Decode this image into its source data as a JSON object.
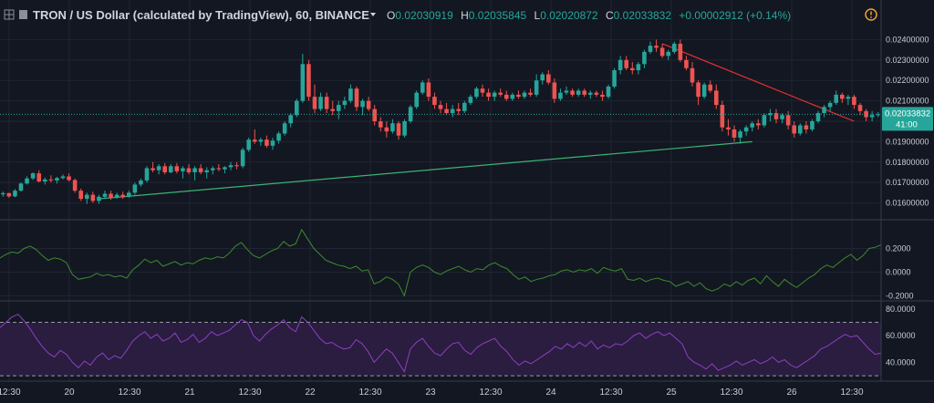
{
  "header": {
    "title": "TRON / US Dollar (calculated by TradingView), 60, BINANCE",
    "o_label": "O",
    "o_value": "0.02030919",
    "h_label": "H",
    "h_value": "0.02035845",
    "l_label": "L",
    "l_value": "0.02020872",
    "c_label": "C",
    "c_value": "0.02033832",
    "change": "+0.00002912 (+0.14%)"
  },
  "colors": {
    "background": "#131722",
    "up": "#26a69a",
    "down": "#ef5350",
    "grid": "#1f2533",
    "text": "#c8ccd5",
    "oscillator": "#3d8b2e",
    "rsi": "#8e3fbf",
    "rsi_band": "#2a1d40",
    "support": "#3cb371",
    "resistance": "#e03030"
  },
  "icons": {
    "toolbar": "grid-icon",
    "series": "candle-icon",
    "warning": "warning-icon",
    "dropdown": "chevron-down-icon"
  },
  "price_badge": {
    "value": "0.02033832",
    "countdown": "41:00"
  },
  "chart_data": [
    {
      "type": "candlestick",
      "title": "TRON / US Dollar (calculated by TradingView), 60, BINANCE",
      "x_ticks": [
        "12:30",
        "20",
        "12:30",
        "21",
        "12:30",
        "22",
        "12:30",
        "23",
        "12:30",
        "24",
        "12:30",
        "25",
        "12:30",
        "26",
        "12:30"
      ],
      "y_ticks": [
        "0.01600000",
        "0.01700000",
        "0.01800000",
        "0.01900000",
        "0.02000000",
        "0.02100000",
        "0.02200000",
        "0.02300000",
        "0.02400000"
      ],
      "ylim": [
        0.0154,
        0.0246
      ],
      "candles": [
        [
          0.01642,
          0.01655,
          0.0163,
          0.01648
        ],
        [
          0.01648,
          0.0165,
          0.01625,
          0.01632
        ],
        [
          0.01632,
          0.01668,
          0.01628,
          0.0166
        ],
        [
          0.0166,
          0.017,
          0.01655,
          0.01695
        ],
        [
          0.01695,
          0.0173,
          0.0169,
          0.0172
        ],
        [
          0.0172,
          0.0175,
          0.01712,
          0.01745
        ],
        [
          0.01745,
          0.0176,
          0.017,
          0.01705
        ],
        [
          0.01705,
          0.01725,
          0.0169,
          0.01715
        ],
        [
          0.01715,
          0.01735,
          0.017,
          0.0171
        ],
        [
          0.0171,
          0.01728,
          0.01695,
          0.01722
        ],
        [
          0.01722,
          0.0174,
          0.01715,
          0.0173
        ],
        [
          0.0173,
          0.01745,
          0.01705,
          0.01712
        ],
        [
          0.01712,
          0.0172,
          0.0165,
          0.0166
        ],
        [
          0.0166,
          0.0167,
          0.0161,
          0.0162
        ],
        [
          0.0162,
          0.0165,
          0.01595,
          0.0164
        ],
        [
          0.0164,
          0.01655,
          0.016,
          0.0161
        ],
        [
          0.0161,
          0.0164,
          0.01595,
          0.0163
        ],
        [
          0.0163,
          0.0166,
          0.0162,
          0.01645
        ],
        [
          0.01645,
          0.0166,
          0.01615,
          0.01625
        ],
        [
          0.01625,
          0.0165,
          0.0162,
          0.0164
        ],
        [
          0.0164,
          0.01655,
          0.0162,
          0.0163
        ],
        [
          0.0163,
          0.0166,
          0.01625,
          0.0165
        ],
        [
          0.0165,
          0.017,
          0.0164,
          0.0169
        ],
        [
          0.0169,
          0.0172,
          0.0168,
          0.0171
        ],
        [
          0.0171,
          0.0178,
          0.017,
          0.0177
        ],
        [
          0.0177,
          0.018,
          0.0175,
          0.0176
        ],
        [
          0.0176,
          0.0179,
          0.0174,
          0.0178
        ],
        [
          0.0178,
          0.01795,
          0.0174,
          0.0175
        ],
        [
          0.0175,
          0.0179,
          0.01745,
          0.0178
        ],
        [
          0.0178,
          0.01795,
          0.01745,
          0.01755
        ],
        [
          0.01755,
          0.0178,
          0.0172,
          0.0177
        ],
        [
          0.0177,
          0.0179,
          0.0174,
          0.0175
        ],
        [
          0.0175,
          0.0178,
          0.0171,
          0.0177
        ],
        [
          0.0177,
          0.0179,
          0.0174,
          0.0175
        ],
        [
          0.0175,
          0.01775,
          0.0172,
          0.0176
        ],
        [
          0.0176,
          0.0178,
          0.0174,
          0.0177
        ],
        [
          0.0177,
          0.0179,
          0.01755,
          0.01765
        ],
        [
          0.01765,
          0.0178,
          0.01745,
          0.01775
        ],
        [
          0.01775,
          0.018,
          0.0176,
          0.01785
        ],
        [
          0.01785,
          0.018,
          0.01765,
          0.0178
        ],
        [
          0.0178,
          0.0187,
          0.0177,
          0.0186
        ],
        [
          0.0186,
          0.0192,
          0.0185,
          0.0191
        ],
        [
          0.0191,
          0.0196,
          0.0189,
          0.019
        ],
        [
          0.019,
          0.0192,
          0.0188,
          0.0191
        ],
        [
          0.0191,
          0.0193,
          0.0187,
          0.0188
        ],
        [
          0.0188,
          0.0192,
          0.0186,
          0.01905
        ],
        [
          0.01905,
          0.0195,
          0.0189,
          0.0194
        ],
        [
          0.0194,
          0.02,
          0.0193,
          0.0199
        ],
        [
          0.0199,
          0.0204,
          0.0197,
          0.0203
        ],
        [
          0.0203,
          0.0211,
          0.0202,
          0.021
        ],
        [
          0.021,
          0.0233,
          0.0209,
          0.0228
        ],
        [
          0.0228,
          0.023,
          0.021,
          0.0212
        ],
        [
          0.0212,
          0.0218,
          0.0204,
          0.0206
        ],
        [
          0.0206,
          0.0214,
          0.0205,
          0.0212
        ],
        [
          0.0212,
          0.0214,
          0.0204,
          0.0206
        ],
        [
          0.0206,
          0.021,
          0.0203,
          0.0205
        ],
        [
          0.0205,
          0.021,
          0.0201,
          0.0208
        ],
        [
          0.0208,
          0.0212,
          0.0206,
          0.021
        ],
        [
          0.021,
          0.0218,
          0.0209,
          0.0216
        ],
        [
          0.0216,
          0.0217,
          0.0205,
          0.0207
        ],
        [
          0.0207,
          0.0211,
          0.0203,
          0.021
        ],
        [
          0.021,
          0.0212,
          0.0205,
          0.0206
        ],
        [
          0.0206,
          0.0208,
          0.0198,
          0.02
        ],
        [
          0.02,
          0.0202,
          0.0195,
          0.0197
        ],
        [
          0.0197,
          0.02,
          0.0192,
          0.0195
        ],
        [
          0.0195,
          0.0201,
          0.0194,
          0.0199
        ],
        [
          0.0199,
          0.02,
          0.0191,
          0.0193
        ],
        [
          0.0193,
          0.0201,
          0.0192,
          0.02
        ],
        [
          0.02,
          0.0208,
          0.0199,
          0.0207
        ],
        [
          0.0207,
          0.0215,
          0.0206,
          0.0214
        ],
        [
          0.0214,
          0.022,
          0.0213,
          0.0219
        ],
        [
          0.0219,
          0.0221,
          0.021,
          0.0212
        ],
        [
          0.0212,
          0.0214,
          0.0206,
          0.0208
        ],
        [
          0.0208,
          0.021,
          0.0204,
          0.0206
        ],
        [
          0.0206,
          0.0209,
          0.0203,
          0.0204
        ],
        [
          0.0204,
          0.0208,
          0.0202,
          0.0206
        ],
        [
          0.0206,
          0.0209,
          0.0203,
          0.0205
        ],
        [
          0.0205,
          0.021,
          0.0204,
          0.0209
        ],
        [
          0.0209,
          0.0213,
          0.0208,
          0.0212
        ],
        [
          0.0212,
          0.0217,
          0.0211,
          0.0216
        ],
        [
          0.0216,
          0.0218,
          0.0212,
          0.0214
        ],
        [
          0.0214,
          0.0216,
          0.021,
          0.0212
        ],
        [
          0.0212,
          0.0215,
          0.021,
          0.0214
        ],
        [
          0.0214,
          0.0216,
          0.0212,
          0.0213
        ],
        [
          0.0213,
          0.0215,
          0.021,
          0.0211
        ],
        [
          0.0211,
          0.0214,
          0.021,
          0.0213
        ],
        [
          0.0213,
          0.0215,
          0.0211,
          0.0212
        ],
        [
          0.0212,
          0.0215,
          0.0211,
          0.0214
        ],
        [
          0.0214,
          0.0216,
          0.0212,
          0.0213
        ],
        [
          0.0213,
          0.0223,
          0.0212,
          0.022
        ],
        [
          0.022,
          0.0224,
          0.0218,
          0.0223
        ],
        [
          0.0223,
          0.0225,
          0.0218,
          0.0219
        ],
        [
          0.0219,
          0.0221,
          0.0209,
          0.0211
        ],
        [
          0.0211,
          0.0216,
          0.021,
          0.0214
        ],
        [
          0.0214,
          0.0217,
          0.0213,
          0.0215
        ],
        [
          0.0215,
          0.0216,
          0.0212,
          0.0213
        ],
        [
          0.0213,
          0.0216,
          0.0212,
          0.0215
        ],
        [
          0.0215,
          0.0216,
          0.0212,
          0.0213
        ],
        [
          0.0213,
          0.0215,
          0.0211,
          0.0214
        ],
        [
          0.0214,
          0.0215,
          0.0212,
          0.0213
        ],
        [
          0.0213,
          0.0215,
          0.021,
          0.0212
        ],
        [
          0.0212,
          0.0218,
          0.0211,
          0.0217
        ],
        [
          0.0217,
          0.0226,
          0.0216,
          0.0225
        ],
        [
          0.0225,
          0.0232,
          0.0223,
          0.023
        ],
        [
          0.023,
          0.0232,
          0.0225,
          0.0226
        ],
        [
          0.0226,
          0.0229,
          0.0223,
          0.0225
        ],
        [
          0.0225,
          0.0229,
          0.0223,
          0.0228
        ],
        [
          0.0228,
          0.0235,
          0.0226,
          0.0234
        ],
        [
          0.0234,
          0.0239,
          0.0233,
          0.0237
        ],
        [
          0.0237,
          0.024,
          0.0234,
          0.0236
        ],
        [
          0.0236,
          0.0238,
          0.0231,
          0.0232
        ],
        [
          0.0232,
          0.0235,
          0.023,
          0.0234
        ],
        [
          0.0234,
          0.0239,
          0.0233,
          0.0238
        ],
        [
          0.0238,
          0.024,
          0.0229,
          0.023
        ],
        [
          0.023,
          0.0232,
          0.0225,
          0.0226
        ],
        [
          0.0226,
          0.0229,
          0.0217,
          0.0219
        ],
        [
          0.0219,
          0.022,
          0.0208,
          0.0212
        ],
        [
          0.0212,
          0.0219,
          0.0211,
          0.0218
        ],
        [
          0.0218,
          0.022,
          0.0214,
          0.0215
        ],
        [
          0.0215,
          0.0218,
          0.0206,
          0.0208
        ],
        [
          0.0208,
          0.021,
          0.0195,
          0.0197
        ],
        [
          0.0197,
          0.0201,
          0.0193,
          0.0196
        ],
        [
          0.0196,
          0.0198,
          0.019,
          0.0192
        ],
        [
          0.0192,
          0.0196,
          0.0189,
          0.0195
        ],
        [
          0.0195,
          0.0198,
          0.0193,
          0.0197
        ],
        [
          0.0197,
          0.02,
          0.0195,
          0.0199
        ],
        [
          0.0199,
          0.0201,
          0.0196,
          0.0198
        ],
        [
          0.0198,
          0.0204,
          0.0197,
          0.0203
        ],
        [
          0.0203,
          0.0206,
          0.02,
          0.0204
        ],
        [
          0.0204,
          0.0206,
          0.0199,
          0.0201
        ],
        [
          0.0201,
          0.0204,
          0.0199,
          0.0203
        ],
        [
          0.0203,
          0.0205,
          0.0196,
          0.0198
        ],
        [
          0.0198,
          0.02,
          0.0192,
          0.0194
        ],
        [
          0.0194,
          0.0199,
          0.0193,
          0.0198
        ],
        [
          0.0198,
          0.02,
          0.0194,
          0.0196
        ],
        [
          0.0196,
          0.0201,
          0.0195,
          0.02
        ],
        [
          0.02,
          0.0205,
          0.0199,
          0.0204
        ],
        [
          0.0204,
          0.0208,
          0.0202,
          0.0207
        ],
        [
          0.0207,
          0.021,
          0.0205,
          0.0209
        ],
        [
          0.0209,
          0.0215,
          0.0208,
          0.0213
        ],
        [
          0.0213,
          0.0214,
          0.0209,
          0.0211
        ],
        [
          0.0211,
          0.0213,
          0.0208,
          0.0212
        ],
        [
          0.0212,
          0.0213,
          0.0206,
          0.0208
        ],
        [
          0.0208,
          0.0209,
          0.0203,
          0.0205
        ],
        [
          0.0205,
          0.0206,
          0.02,
          0.0202
        ],
        [
          0.0202,
          0.0205,
          0.02,
          0.0203
        ],
        [
          0.0203,
          0.02045,
          0.0202,
          0.02034
        ]
      ],
      "trendlines": [
        {
          "type": "support",
          "from": {
            "candle": 16,
            "price": 0.0162
          },
          "to": {
            "candle": 125,
            "price": 0.019
          }
        },
        {
          "type": "resistance",
          "from": {
            "candle": 110,
            "price": 0.0238
          },
          "to": {
            "candle": 142,
            "price": 0.02
          }
        }
      ],
      "last_price": 0.02033832
    },
    {
      "type": "line",
      "title": "",
      "y_ticks": [
        "0.2000",
        "0.0000",
        "-0.2000"
      ],
      "ylim": [
        -0.22,
        0.42
      ],
      "values": [
        0.12,
        0.15,
        0.17,
        0.16,
        0.2,
        0.22,
        0.19,
        0.14,
        0.1,
        0.12,
        0.11,
        0.08,
        -0.02,
        -0.06,
        -0.05,
        -0.04,
        -0.01,
        -0.03,
        -0.02,
        -0.04,
        -0.03,
        -0.05,
        0.02,
        0.06,
        0.11,
        0.08,
        0.1,
        0.05,
        0.07,
        0.09,
        0.06,
        0.08,
        0.07,
        0.1,
        0.12,
        0.11,
        0.13,
        0.12,
        0.16,
        0.22,
        0.25,
        0.19,
        0.14,
        0.12,
        0.15,
        0.18,
        0.2,
        0.26,
        0.22,
        0.24,
        0.36,
        0.28,
        0.2,
        0.15,
        0.1,
        0.08,
        0.06,
        0.05,
        0.03,
        0.05,
        0.01,
        0.02,
        -0.1,
        -0.08,
        -0.04,
        -0.06,
        -0.1,
        -0.2,
        0.0,
        0.04,
        0.06,
        0.04,
        0.0,
        -0.02,
        0.01,
        0.03,
        0.05,
        0.02,
        0.0,
        0.03,
        0.02,
        0.06,
        0.08,
        0.05,
        0.03,
        -0.02,
        -0.06,
        -0.04,
        -0.08,
        -0.06,
        -0.05,
        -0.03,
        -0.02,
        0.01,
        0.02,
        0.0,
        0.02,
        0.01,
        0.03,
        -0.01,
        0.04,
        0.02,
        0.01,
        0.03,
        -0.06,
        -0.07,
        -0.05,
        -0.08,
        -0.06,
        -0.05,
        -0.07,
        -0.08,
        -0.12,
        -0.1,
        -0.08,
        -0.12,
        -0.09,
        -0.14,
        -0.16,
        -0.14,
        -0.1,
        -0.12,
        -0.08,
        -0.11,
        -0.07,
        -0.05,
        -0.1,
        -0.03,
        -0.08,
        -0.12,
        -0.06,
        -0.1,
        -0.13,
        -0.09,
        -0.05,
        -0.02,
        0.03,
        0.06,
        0.04,
        0.08,
        0.12,
        0.15,
        0.1,
        0.14,
        0.2,
        0.21,
        0.23
      ],
      "zero_line": 0
    },
    {
      "type": "line",
      "title": "",
      "y_ticks": [
        "80.0000",
        "60.0000",
        "40.0000"
      ],
      "ylim": [
        28,
        84
      ],
      "band": [
        30,
        70
      ],
      "values": [
        66,
        70,
        74,
        76,
        71,
        65,
        58,
        52,
        47,
        44,
        49,
        46,
        40,
        36,
        41,
        38,
        44,
        47,
        42,
        45,
        43,
        49,
        56,
        60,
        63,
        58,
        61,
        56,
        58,
        62,
        55,
        57,
        61,
        55,
        58,
        63,
        60,
        62,
        64,
        68,
        72,
        70,
        60,
        56,
        61,
        65,
        68,
        72,
        66,
        63,
        74,
        70,
        64,
        58,
        54,
        55,
        52,
        50,
        51,
        57,
        54,
        48,
        40,
        45,
        50,
        47,
        40,
        33,
        50,
        55,
        58,
        52,
        47,
        45,
        50,
        54,
        55,
        49,
        46,
        51,
        54,
        56,
        58,
        52,
        48,
        42,
        38,
        41,
        39,
        42,
        45,
        48,
        52,
        50,
        54,
        51,
        55,
        52,
        56,
        50,
        53,
        51,
        54,
        53,
        56,
        60,
        62,
        58,
        61,
        63,
        60,
        62,
        58,
        54,
        44,
        40,
        38,
        35,
        39,
        34,
        36,
        38,
        41,
        38,
        40,
        42,
        39,
        41,
        44,
        40,
        42,
        38,
        36,
        39,
        42,
        45,
        50,
        52,
        55,
        58,
        61,
        59,
        60,
        55,
        50,
        46,
        47
      ]
    }
  ]
}
